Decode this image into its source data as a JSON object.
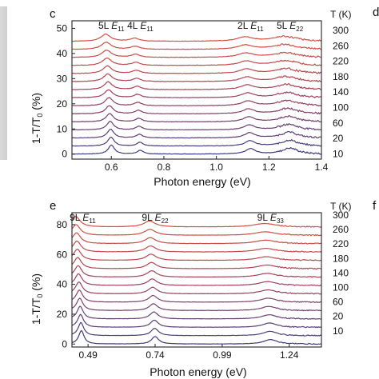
{
  "chart_data": [
    {
      "type": "line",
      "panel_label": "c",
      "xlabel": "Photon energy (eV)",
      "ylabel": "1-T/T",
      "ylabel_sub": "0",
      "ylabel_unit": " (%)",
      "xlim": [
        0.45,
        1.4
      ],
      "ylim": [
        -2,
        53
      ],
      "xticks": [
        0.6,
        0.8,
        1.0,
        1.2,
        1.4
      ],
      "xtick_labels": [
        "0.6",
        "0.8",
        "1.0",
        "1.2",
        "1.4"
      ],
      "yticks": [
        0,
        10,
        20,
        30,
        40,
        50
      ],
      "ytick_labels": [
        "0",
        "10",
        "20",
        "30",
        "40",
        "50"
      ],
      "temperature_header": "T (K)",
      "temperature_labels": [
        "300",
        "260",
        "220",
        "180",
        "140",
        "100",
        "60",
        "20",
        "10"
      ],
      "n_curves": 15,
      "curve_offset": 3.2,
      "base_level": 0,
      "peak_annotations": [
        {
          "prefix": "5L ",
          "E": "E",
          "sub": "11",
          "x": 0.6
        },
        {
          "prefix": "4L ",
          "E": "E",
          "sub": "11",
          "x": 0.71
        },
        {
          "prefix": "2L ",
          "E": "E",
          "sub": "11",
          "x": 1.13
        },
        {
          "prefix": "5L ",
          "E": "E",
          "sub": "22",
          "x": 1.28
        }
      ],
      "peaks": [
        {
          "x": 0.6,
          "amp": 3.6,
          "width": 0.014
        },
        {
          "x": 0.71,
          "amp": 1.5,
          "width": 0.013
        },
        {
          "x": 1.13,
          "amp": 2.1,
          "width": 0.022
        },
        {
          "x": 1.28,
          "amp": 2.4,
          "width": 0.035
        }
      ],
      "curve_colors": [
        "#3b3d80",
        "#4a3e7e",
        "#5b3f79",
        "#6a3f74",
        "#783f6e",
        "#863f68",
        "#944062",
        "#a0405c",
        "#ab4256",
        "#b54450",
        "#bd474b",
        "#c44a47",
        "#ca4d44",
        "#cf4f41",
        "#d4513e"
      ]
    },
    {
      "type": "line",
      "panel_label": "e",
      "xlabel": "Photon energy (eV)",
      "ylabel": "1-T/T",
      "ylabel_sub": "0",
      "ylabel_unit": " (%)",
      "xlim": [
        0.43,
        1.36
      ],
      "ylim": [
        -2,
        88
      ],
      "xticks": [
        0.49,
        0.74,
        0.99,
        1.24
      ],
      "xtick_labels": [
        "0.49",
        "0.74",
        "0.99",
        "1.24"
      ],
      "yticks": [
        0,
        20,
        40,
        60,
        80
      ],
      "ytick_labels": [
        "0",
        "20",
        "40",
        "60",
        "80"
      ],
      "temperature_header": "T (K)",
      "temperature_labels": [
        "300",
        "260",
        "220",
        "180",
        "140",
        "100",
        "60",
        "20",
        "10"
      ],
      "n_curves": 15,
      "curve_offset": 5.6,
      "base_level": 0,
      "peak_annotations": [
        {
          "prefix": "9L ",
          "E": "E",
          "sub": "11",
          "x": 0.47
        },
        {
          "prefix": "9L ",
          "E": "E",
          "sub": "22",
          "x": 0.74
        },
        {
          "prefix": "9L ",
          "E": "E",
          "sub": "33",
          "x": 1.17
        }
      ],
      "peaks": [
        {
          "x": 0.465,
          "amp": 9.0,
          "width": 0.012
        },
        {
          "x": 0.74,
          "amp": 5.0,
          "width": 0.016
        },
        {
          "x": 1.17,
          "amp": 3.0,
          "width": 0.03
        }
      ],
      "curve_colors": [
        "#3b3d80",
        "#4a3e7e",
        "#5b3f79",
        "#6a3f74",
        "#783f6e",
        "#863f68",
        "#944062",
        "#a0405c",
        "#ab4256",
        "#b54450",
        "#bd474b",
        "#c44a47",
        "#ca4d44",
        "#cf4f41",
        "#d4513e"
      ]
    }
  ],
  "edge_labels": {
    "top_right": "d",
    "bottom_right": "f"
  }
}
